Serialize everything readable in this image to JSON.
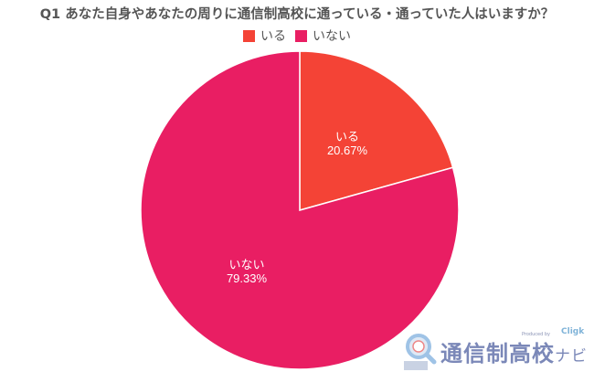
{
  "chart_data": {
    "type": "pie",
    "title": "Q1 あなた自身やあなたの周りに通信制高校に通っている・通っていた人はいますか？",
    "categories": [
      "いる",
      "いない"
    ],
    "values": [
      20.67,
      79.33
    ],
    "unit": "%",
    "colors": [
      "#f44336",
      "#e91e63"
    ],
    "legend_position": "top",
    "data_labels": [
      {
        "name": "いる",
        "value": "20.67%"
      },
      {
        "name": "いない",
        "value": "79.33%"
      }
    ]
  },
  "legend": {
    "items": [
      {
        "label": "いる",
        "color": "#f44336"
      },
      {
        "label": "いない",
        "color": "#e91e63"
      }
    ]
  },
  "labels": {
    "iru_name": "いる",
    "iru_value": "20.67%",
    "inai_name": "いない",
    "inai_value": "79.33%"
  },
  "watermark": {
    "produced_by": "Produced by",
    "brand": "Cligk",
    "site_name": "通信制高校",
    "site_suffix": "ナビ"
  }
}
